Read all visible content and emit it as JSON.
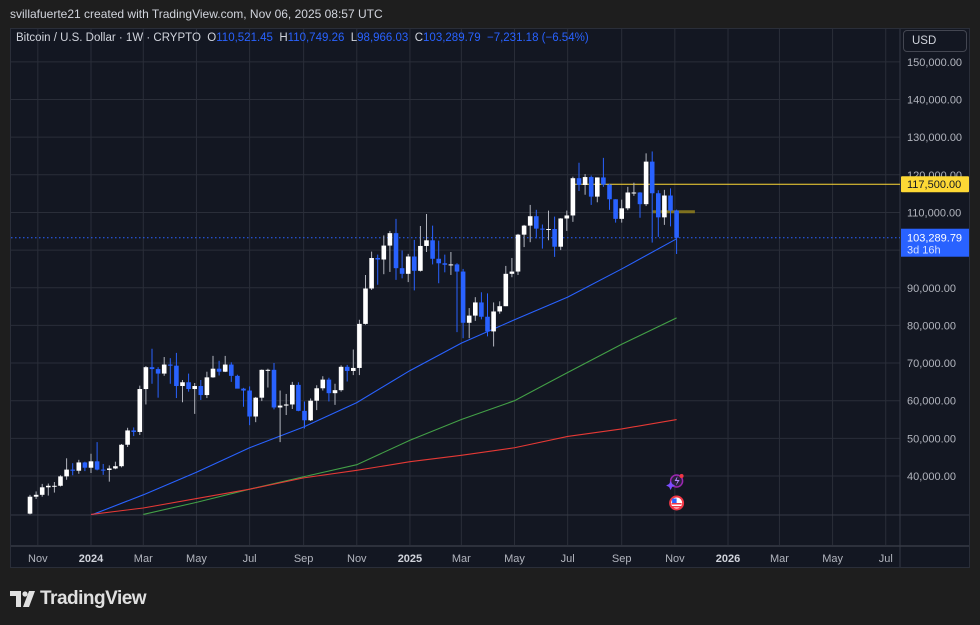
{
  "credit": "svillafuerte21 created with TradingView.com, Nov 06, 2025 08:57 UTC",
  "legend": {
    "symbol": "Bitcoin / U.S. Dollar · 1W · CRYPTO",
    "o_label": "O",
    "o": "110,521.45",
    "h_label": "H",
    "h": "110,749.26",
    "l_label": "L",
    "l": "98,966.03",
    "c_label": "C",
    "c": "103,289.79",
    "change": "−7,231.18 (−6.54%)"
  },
  "currency_button": "USD",
  "logo_text": "TradingView",
  "colors": {
    "up": "#ffffff",
    "down": "#2962ff",
    "ma_blue": "#2962ff",
    "ma_green": "#43a047",
    "ma_red": "#e53935",
    "level": "#fdd835",
    "bg": "#131722",
    "grid": "#2a2e39"
  },
  "chart_data": {
    "type": "candlestick",
    "interval": "1W",
    "start_week": "2023-10-23",
    "units": "USD thousands [open, high, low, close]",
    "ylim": [
      30000,
      157000
    ],
    "y_ticks": [
      "150,000.00",
      "140,000.00",
      "130,000.00",
      "120,000.00",
      "110,000.00",
      "90,000.00",
      "80,000.00",
      "70,000.00",
      "60,000.00",
      "50,000.00",
      "40,000.00"
    ],
    "y_tick_values": [
      150000,
      140000,
      130000,
      120000,
      110000,
      90000,
      80000,
      70000,
      60000,
      50000,
      40000
    ],
    "x_ticks": [
      "Nov",
      "2024",
      "Mar",
      "May",
      "Jul",
      "Sep",
      "Nov",
      "2025",
      "Mar",
      "May",
      "Jul",
      "Sep",
      "Nov",
      "2026",
      "Mar",
      "May",
      "Jul"
    ],
    "x_tick_dates": [
      "2023-11-01",
      "2024-01-01",
      "2024-03-01",
      "2024-05-01",
      "2024-07-01",
      "2024-09-01",
      "2024-11-01",
      "2025-01-01",
      "2025-03-01",
      "2025-05-01",
      "2025-07-01",
      "2025-09-01",
      "2025-11-01",
      "2026-01-01",
      "2026-03-01",
      "2026-05-01",
      "2026-07-01"
    ],
    "candles": [
      [
        30.0,
        35.0,
        29.8,
        34.5
      ],
      [
        34.5,
        35.9,
        33.9,
        35.0
      ],
      [
        35.0,
        37.9,
        34.5,
        37.0
      ],
      [
        37.0,
        38.0,
        34.8,
        37.4
      ],
      [
        37.4,
        38.4,
        35.6,
        37.4
      ],
      [
        37.4,
        40.2,
        37.2,
        39.9
      ],
      [
        39.9,
        44.7,
        39.0,
        41.7
      ],
      [
        41.7,
        43.4,
        40.2,
        41.4
      ],
      [
        41.4,
        44.3,
        40.6,
        43.6
      ],
      [
        43.6,
        43.8,
        41.3,
        42.2
      ],
      [
        42.2,
        45.9,
        40.8,
        43.9
      ],
      [
        43.9,
        49.0,
        41.5,
        41.7
      ],
      [
        41.7,
        43.2,
        40.3,
        41.6
      ],
      [
        41.6,
        42.8,
        38.5,
        42.0
      ],
      [
        42.0,
        43.8,
        41.8,
        42.6
      ],
      [
        42.6,
        48.5,
        42.3,
        48.3
      ],
      [
        48.3,
        52.8,
        47.7,
        52.1
      ],
      [
        52.1,
        52.9,
        50.6,
        51.7
      ],
      [
        51.7,
        64.0,
        50.9,
        63.1
      ],
      [
        63.1,
        69.2,
        59.0,
        68.9
      ],
      [
        68.9,
        73.8,
        64.5,
        68.4
      ],
      [
        68.4,
        68.9,
        60.8,
        67.2
      ],
      [
        67.2,
        71.6,
        66.6,
        69.6
      ],
      [
        69.6,
        71.3,
        64.5,
        69.3
      ],
      [
        69.3,
        72.7,
        60.7,
        63.9
      ],
      [
        63.9,
        65.5,
        59.6,
        64.9
      ],
      [
        64.9,
        67.2,
        62.4,
        63.1
      ],
      [
        63.1,
        64.7,
        56.5,
        63.9
      ],
      [
        63.9,
        65.5,
        60.2,
        61.5
      ],
      [
        61.5,
        67.7,
        60.7,
        66.2
      ],
      [
        66.2,
        71.9,
        66.1,
        68.5
      ],
      [
        68.5,
        70.6,
        66.7,
        67.7
      ],
      [
        67.7,
        71.9,
        67.6,
        69.6
      ],
      [
        69.6,
        70.2,
        65.0,
        66.6
      ],
      [
        66.6,
        66.9,
        63.4,
        63.2
      ],
      [
        63.2,
        63.4,
        58.4,
        62.7
      ],
      [
        62.7,
        63.8,
        53.5,
        55.8
      ],
      [
        55.8,
        61.0,
        54.3,
        60.8
      ],
      [
        60.8,
        68.3,
        59.9,
        68.2
      ],
      [
        68.2,
        68.5,
        63.5,
        68.2
      ],
      [
        68.2,
        70.0,
        57.7,
        58.2
      ],
      [
        58.2,
        62.7,
        49.0,
        58.7
      ],
      [
        58.7,
        61.8,
        56.2,
        59.0
      ],
      [
        59.0,
        65.0,
        57.8,
        64.2
      ],
      [
        64.2,
        64.9,
        57.2,
        57.3
      ],
      [
        57.3,
        59.8,
        52.6,
        54.8
      ],
      [
        54.8,
        60.6,
        54.6,
        60.0
      ],
      [
        60.0,
        64.1,
        57.5,
        63.3
      ],
      [
        63.3,
        66.5,
        62.7,
        65.6
      ],
      [
        65.6,
        66.1,
        59.8,
        62.0
      ],
      [
        62.0,
        64.5,
        58.9,
        62.8
      ],
      [
        62.8,
        69.4,
        62.4,
        69.0
      ],
      [
        69.0,
        69.5,
        65.1,
        67.9
      ],
      [
        67.9,
        73.6,
        66.8,
        68.7
      ],
      [
        68.7,
        81.5,
        66.8,
        80.4
      ],
      [
        80.4,
        93.4,
        80.2,
        89.8
      ],
      [
        89.8,
        99.6,
        89.4,
        97.9
      ],
      [
        97.9,
        98.8,
        90.8,
        97.5
      ],
      [
        97.5,
        103.9,
        93.6,
        101.2
      ],
      [
        101.2,
        105.1,
        94.2,
        104.5
      ],
      [
        104.5,
        108.3,
        92.1,
        95.2
      ],
      [
        95.2,
        99.9,
        92.5,
        93.7
      ],
      [
        93.7,
        99.0,
        91.5,
        98.3
      ],
      [
        98.3,
        102.7,
        89.3,
        94.5
      ],
      [
        94.5,
        106.4,
        94.3,
        101.1
      ],
      [
        101.1,
        109.6,
        99.5,
        102.6
      ],
      [
        102.6,
        106.5,
        96.2,
        97.7
      ],
      [
        97.7,
        102.5,
        91.2,
        96.5
      ],
      [
        96.5,
        98.8,
        94.1,
        96.1
      ],
      [
        96.1,
        99.5,
        93.4,
        96.2
      ],
      [
        96.2,
        96.5,
        78.2,
        94.3
      ],
      [
        94.3,
        95.0,
        76.6,
        80.7
      ],
      [
        80.7,
        84.6,
        76.6,
        82.6
      ],
      [
        82.6,
        87.5,
        81.2,
        86.1
      ],
      [
        86.1,
        88.8,
        81.6,
        82.3
      ],
      [
        82.3,
        88.5,
        77.1,
        78.4
      ],
      [
        78.4,
        86.1,
        74.4,
        83.7
      ],
      [
        83.7,
        86.4,
        83.1,
        85.1
      ],
      [
        85.1,
        95.8,
        85.1,
        93.7
      ],
      [
        93.7,
        97.9,
        92.8,
        94.3
      ],
      [
        94.3,
        104.3,
        93.4,
        104.1
      ],
      [
        104.1,
        106.7,
        100.8,
        106.5
      ],
      [
        106.5,
        112.0,
        102.1,
        109.0
      ],
      [
        109.0,
        110.7,
        103.1,
        105.7
      ],
      [
        105.7,
        106.8,
        100.4,
        105.6
      ],
      [
        105.6,
        110.5,
        102.6,
        105.6
      ],
      [
        105.6,
        108.9,
        98.2,
        100.9
      ],
      [
        100.9,
        108.5,
        100.0,
        108.4
      ],
      [
        108.4,
        110.5,
        105.1,
        109.2
      ],
      [
        109.2,
        119.5,
        107.5,
        119.1
      ],
      [
        119.1,
        123.2,
        115.7,
        117.3
      ],
      [
        117.3,
        120.2,
        114.7,
        119.4
      ],
      [
        119.4,
        119.8,
        112.0,
        114.2
      ],
      [
        114.2,
        119.3,
        112.7,
        119.3
      ],
      [
        119.3,
        124.5,
        116.8,
        117.4
      ],
      [
        117.4,
        117.6,
        110.7,
        113.5
      ],
      [
        113.5,
        113.5,
        107.3,
        108.3
      ],
      [
        108.3,
        113.4,
        107.3,
        111.1
      ],
      [
        111.1,
        116.8,
        110.6,
        115.3
      ],
      [
        115.3,
        117.9,
        114.4,
        115.3
      ],
      [
        115.3,
        115.4,
        108.6,
        112.2
      ],
      [
        112.2,
        125.7,
        111.7,
        123.5
      ],
      [
        123.5,
        126.2,
        102.0,
        115.1
      ],
      [
        115.1,
        115.9,
        103.5,
        108.7
      ],
      [
        108.7,
        116.0,
        106.7,
        114.5
      ],
      [
        114.5,
        116.4,
        106.3,
        110.5
      ],
      [
        110.52,
        110.75,
        98.97,
        103.29
      ]
    ],
    "moving_averages": [
      {
        "color": "#2962ff",
        "points": [
          [
            "2024-01-01",
            29.6
          ],
          [
            "2024-03-01",
            35
          ],
          [
            "2024-05-01",
            41
          ],
          [
            "2024-07-01",
            47.5
          ],
          [
            "2024-09-01",
            53
          ],
          [
            "2024-11-01",
            59.5
          ],
          [
            "2025-01-01",
            68
          ],
          [
            "2025-03-01",
            75.3
          ],
          [
            "2025-05-01",
            81.5
          ],
          [
            "2025-07-01",
            87.5
          ],
          [
            "2025-09-01",
            95
          ],
          [
            "2025-11-03",
            103
          ]
        ]
      },
      {
        "color": "#43a047",
        "points": [
          [
            "2024-03-01",
            29.8
          ],
          [
            "2024-05-01",
            33
          ],
          [
            "2024-07-01",
            36.5
          ],
          [
            "2024-09-01",
            39.8
          ],
          [
            "2024-11-01",
            43
          ],
          [
            "2025-01-01",
            49.5
          ],
          [
            "2025-03-01",
            55
          ],
          [
            "2025-05-01",
            60
          ],
          [
            "2025-07-01",
            67.5
          ],
          [
            "2025-09-01",
            75
          ],
          [
            "2025-11-03",
            82
          ]
        ]
      },
      {
        "color": "#e53935",
        "points": [
          [
            "2024-01-01",
            29.8
          ],
          [
            "2024-03-01",
            31.5
          ],
          [
            "2024-05-01",
            34
          ],
          [
            "2024-07-01",
            36.5
          ],
          [
            "2024-09-01",
            39.5
          ],
          [
            "2024-11-01",
            41.5
          ],
          [
            "2025-01-01",
            43.8
          ],
          [
            "2025-03-01",
            45.5
          ],
          [
            "2025-05-01",
            47.5
          ],
          [
            "2025-07-01",
            50.5
          ],
          [
            "2025-09-01",
            52.5
          ],
          [
            "2025-11-03",
            55
          ]
        ]
      }
    ],
    "level_line": {
      "value": 117500,
      "label": "117,500.00",
      "start": "2025-07-07"
    },
    "marker_level": {
      "value": 110200,
      "start": "2025-10-06",
      "end": "2025-11-24"
    },
    "last_price": {
      "value": 103289.79,
      "label": "103,289.79",
      "countdown": "3d 16h"
    },
    "events": [
      "lightning-event-icon",
      "us-flag-economic-event-icon"
    ]
  }
}
